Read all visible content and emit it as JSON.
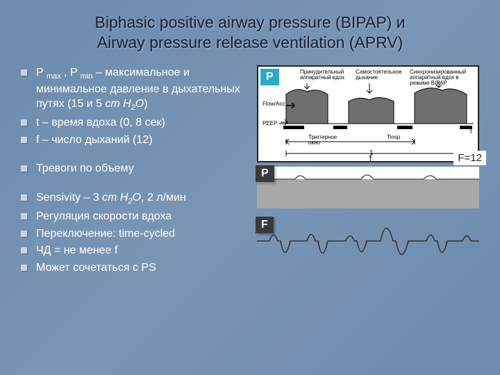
{
  "title_line1": "Biphasic positive airway pressure (BIPAP) и",
  "title_line2": "Airway pressure release ventilation (APRV)",
  "bullets": [
    {
      "html": "P <span class='sub'>max</span> , P <span class='sub'>min</span> – максимальное и минимальное давление в дыхательных путях (15 и 5 <span class='italic'>cm H<span class='sub'>2</span>O</span>)"
    },
    {
      "html": "t – время вдоха (0, 8 сек)"
    },
    {
      "html": "f – число дыханий (12)"
    },
    {
      "html": "Тревоги по объему",
      "gap": true
    },
    {
      "html": "Sensivity – 3 <span class='italic'>cm H<span class='sub'>2</span>O</span>, 2 л/мин",
      "gap": true
    },
    {
      "html": "Регуляция скорости вдоха"
    },
    {
      "html": "Переключение: time-cycled"
    },
    {
      "html": "ЧД  = не менее f"
    },
    {
      "html": "Может сочетаться с PS"
    }
  ],
  "badges": {
    "p1": "P",
    "f_eq": "F=12",
    "p2": "P",
    "f2": "F"
  },
  "diagram1": {
    "top_labels": [
      "Принудительный аппаратный вдох",
      "Самостоятельное дыхание",
      "Синхронизированный аппаратный вдох в режиме BIPAP"
    ],
    "flow_label": "Flow/Acc",
    "peep_label": "PEEP",
    "trigger_label": "Триггерное окно",
    "tinsp_label": "Tinsp",
    "f_label": "f",
    "one_over_f": "1",
    "colors": {
      "wave_fill": "#6f6f6f",
      "wave_stroke": "#000000",
      "axis": "#000000",
      "marker": "#000000"
    }
  },
  "diagram2": {
    "bg": "#a8a8a8",
    "stroke": "#5a5a5a"
  },
  "diagram3": {
    "stroke": "#333333",
    "baseline": 45
  },
  "layout": {
    "slide_bg_start": "#6b8aad",
    "slide_bg_end": "#7a96b5",
    "title_color": "#1a2138",
    "text_color": "#ffffff",
    "badge_teal": "#2aa9c9"
  }
}
